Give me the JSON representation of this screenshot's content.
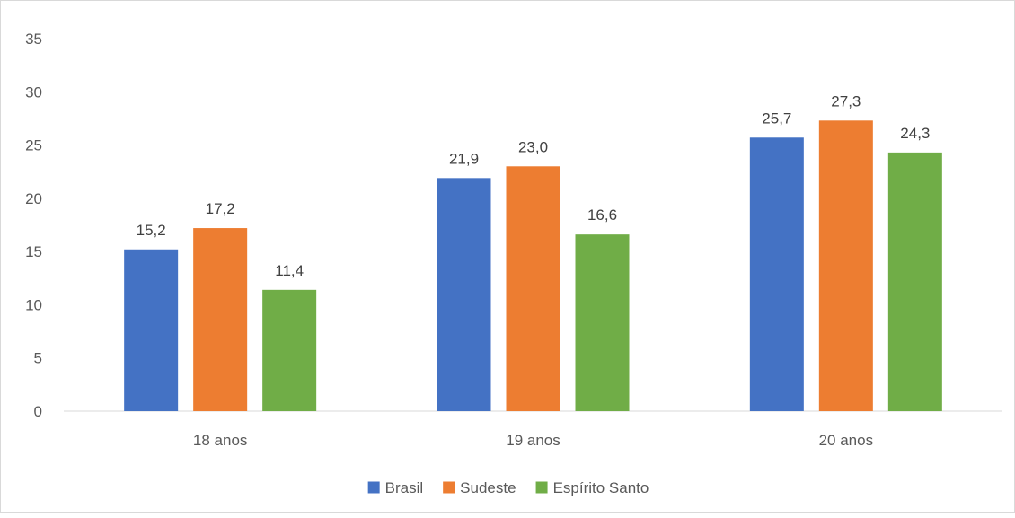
{
  "chart_data": {
    "type": "bar",
    "categories": [
      "18 anos",
      "19 anos",
      "20 anos"
    ],
    "series": [
      {
        "name": "Brasil",
        "color": "#4472c4",
        "values": [
          15.2,
          21.9,
          25.7
        ],
        "labels": [
          "15,2",
          "21,9",
          "25,7"
        ]
      },
      {
        "name": "Sudeste",
        "color": "#ed7d31",
        "values": [
          17.2,
          23.0,
          27.3
        ],
        "labels": [
          "17,2",
          "23,0",
          "27,3"
        ]
      },
      {
        "name": "Espírito Santo",
        "color": "#70ad47",
        "values": [
          11.4,
          16.6,
          24.3
        ],
        "labels": [
          "11,4",
          "16,6",
          "24,3"
        ]
      }
    ],
    "ylim": [
      0,
      35
    ],
    "yticks": [
      0,
      5,
      10,
      15,
      20,
      25,
      30,
      35
    ],
    "grid": false,
    "legend": "bottom-center"
  }
}
